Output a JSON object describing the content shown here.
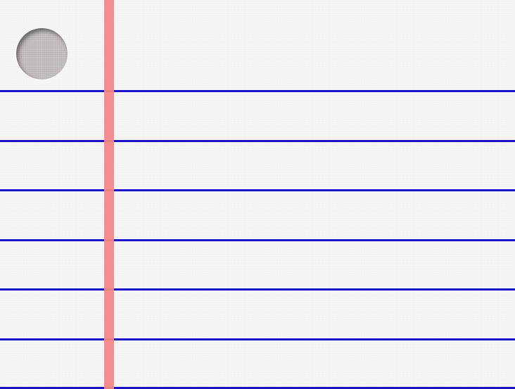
{
  "paper": {
    "background_color": "#f7f6f7",
    "rule_line_color": "#1a12c8",
    "margin_line_color": "#f38787",
    "hole_color": "#c6c1c0",
    "rule_line_count": 7,
    "punch_hole_count": 1
  }
}
